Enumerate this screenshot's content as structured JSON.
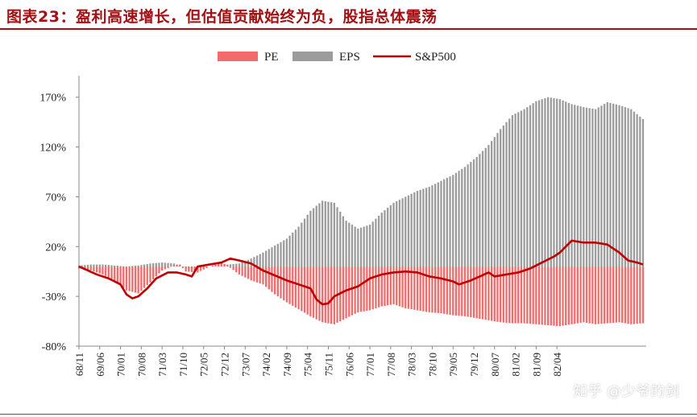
{
  "title": "图表23：盈利高速增长，但估值贡献始终为负，股指总体震荡",
  "watermark": "知乎 @少爷的剑",
  "colors": {
    "pe": "#f26a6a",
    "eps": "#9c9c9c",
    "sp500": "#c00000",
    "title": "#a40f13"
  },
  "chart_data": {
    "type": "bar",
    "ylim": [
      -80,
      190
    ],
    "yticks": [
      170,
      120,
      70,
      20,
      -30,
      -80
    ],
    "ytick_labels": [
      "170%",
      "120%",
      "70%",
      "20%",
      "-30%",
      "-80%"
    ],
    "grid": false,
    "legend_position": "top-center",
    "x_tick_labels": [
      "68/11",
      "69/06",
      "70/01",
      "70/08",
      "71/03",
      "71/10",
      "72/05",
      "72/12",
      "73/07",
      "74/02",
      "74/09",
      "75/04",
      "75/11",
      "76/06",
      "77/01",
      "77/08",
      "78/03",
      "78/10",
      "79/05",
      "79/12",
      "80/07",
      "81/02",
      "81/09",
      "82/04"
    ],
    "series": [
      {
        "name": "PE",
        "kind": "bar",
        "anchors": [
          [
            0,
            -2
          ],
          [
            4,
            -4
          ],
          [
            8,
            -8
          ],
          [
            12,
            -14
          ],
          [
            16,
            -24
          ],
          [
            20,
            -27
          ],
          [
            24,
            -16
          ],
          [
            28,
            -4
          ],
          [
            32,
            1
          ],
          [
            34,
            2
          ],
          [
            36,
            -5
          ],
          [
            40,
            -6
          ],
          [
            44,
            0
          ],
          [
            48,
            4
          ],
          [
            50,
            1
          ],
          [
            54,
            -8
          ],
          [
            58,
            -14
          ],
          [
            62,
            -18
          ],
          [
            66,
            -28
          ],
          [
            70,
            -36
          ],
          [
            74,
            -43
          ],
          [
            78,
            -50
          ],
          [
            82,
            -56
          ],
          [
            86,
            -58
          ],
          [
            90,
            -52
          ],
          [
            94,
            -46
          ],
          [
            98,
            -44
          ],
          [
            102,
            -40
          ],
          [
            106,
            -38
          ],
          [
            110,
            -42
          ],
          [
            114,
            -44
          ],
          [
            118,
            -46
          ],
          [
            122,
            -47
          ],
          [
            126,
            -49
          ],
          [
            130,
            -50
          ],
          [
            134,
            -52
          ],
          [
            138,
            -54
          ],
          [
            142,
            -56
          ],
          [
            146,
            -57
          ],
          [
            150,
            -57
          ],
          [
            154,
            -58
          ],
          [
            158,
            -59
          ],
          [
            162,
            -60
          ],
          [
            166,
            -58
          ],
          [
            170,
            -56
          ],
          [
            174,
            -58
          ],
          [
            178,
            -57
          ],
          [
            182,
            -56
          ],
          [
            186,
            -58
          ],
          [
            190,
            -57
          ]
        ]
      },
      {
        "name": "EPS",
        "kind": "bar",
        "anchors": [
          [
            0,
            1
          ],
          [
            4,
            2
          ],
          [
            8,
            2
          ],
          [
            12,
            1
          ],
          [
            16,
            0
          ],
          [
            20,
            1
          ],
          [
            24,
            3
          ],
          [
            28,
            4
          ],
          [
            32,
            3
          ],
          [
            34,
            1
          ],
          [
            36,
            -2
          ],
          [
            40,
            -1
          ],
          [
            44,
            0
          ],
          [
            48,
            3
          ],
          [
            50,
            2
          ],
          [
            54,
            3
          ],
          [
            58,
            8
          ],
          [
            62,
            14
          ],
          [
            66,
            21
          ],
          [
            70,
            28
          ],
          [
            74,
            40
          ],
          [
            78,
            56
          ],
          [
            82,
            66
          ],
          [
            86,
            64
          ],
          [
            90,
            46
          ],
          [
            94,
            38
          ],
          [
            98,
            42
          ],
          [
            102,
            54
          ],
          [
            106,
            64
          ],
          [
            110,
            70
          ],
          [
            114,
            76
          ],
          [
            118,
            80
          ],
          [
            122,
            86
          ],
          [
            126,
            92
          ],
          [
            130,
            100
          ],
          [
            134,
            110
          ],
          [
            138,
            122
          ],
          [
            142,
            138
          ],
          [
            146,
            152
          ],
          [
            150,
            158
          ],
          [
            154,
            166
          ],
          [
            158,
            170
          ],
          [
            162,
            168
          ],
          [
            166,
            163
          ],
          [
            170,
            160
          ],
          [
            174,
            158
          ],
          [
            178,
            165
          ],
          [
            182,
            162
          ],
          [
            186,
            158
          ],
          [
            190,
            148
          ]
        ]
      },
      {
        "name": "S&P500",
        "kind": "line",
        "anchors": [
          [
            0,
            0
          ],
          [
            3,
            -4
          ],
          [
            6,
            -8
          ],
          [
            10,
            -12
          ],
          [
            14,
            -18
          ],
          [
            16,
            -28
          ],
          [
            18,
            -32
          ],
          [
            20,
            -30
          ],
          [
            23,
            -22
          ],
          [
            26,
            -12
          ],
          [
            30,
            -6
          ],
          [
            33,
            -6
          ],
          [
            36,
            -8
          ],
          [
            38,
            -10
          ],
          [
            40,
            0
          ],
          [
            44,
            2
          ],
          [
            48,
            4
          ],
          [
            51,
            8
          ],
          [
            54,
            6
          ],
          [
            58,
            3
          ],
          [
            62,
            -4
          ],
          [
            66,
            -9
          ],
          [
            70,
            -14
          ],
          [
            74,
            -18
          ],
          [
            78,
            -22
          ],
          [
            80,
            -33
          ],
          [
            82,
            -38
          ],
          [
            84,
            -37
          ],
          [
            86,
            -30
          ],
          [
            90,
            -24
          ],
          [
            94,
            -20
          ],
          [
            98,
            -12
          ],
          [
            102,
            -8
          ],
          [
            106,
            -6
          ],
          [
            110,
            -5
          ],
          [
            114,
            -6
          ],
          [
            118,
            -10
          ],
          [
            122,
            -12
          ],
          [
            126,
            -15
          ],
          [
            128,
            -18
          ],
          [
            132,
            -14
          ],
          [
            135,
            -10
          ],
          [
            138,
            -6
          ],
          [
            140,
            -10
          ],
          [
            144,
            -8
          ],
          [
            148,
            -6
          ],
          [
            152,
            -2
          ],
          [
            156,
            4
          ],
          [
            160,
            10
          ],
          [
            162,
            14
          ],
          [
            164,
            20
          ],
          [
            166,
            26
          ],
          [
            170,
            24
          ],
          [
            174,
            24
          ],
          [
            178,
            22
          ],
          [
            182,
            14
          ],
          [
            185,
            6
          ],
          [
            188,
            4
          ],
          [
            190,
            2
          ]
        ]
      }
    ]
  }
}
